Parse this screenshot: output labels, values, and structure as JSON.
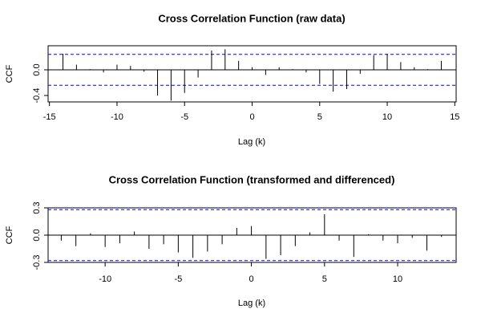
{
  "chart_data": [
    {
      "type": "bar",
      "title": "Cross Correlation Function (raw data)",
      "xlabel": "Lag (k)",
      "ylabel": "CCF",
      "x": [
        -14,
        -13,
        -12,
        -11,
        -10,
        -9,
        -8,
        -7,
        -6,
        -5,
        -4,
        -3,
        -2,
        -1,
        0,
        1,
        2,
        3,
        4,
        5,
        6,
        7,
        8,
        9,
        10,
        11,
        12,
        13,
        14
      ],
      "values": [
        0.25,
        0.08,
        0.01,
        -0.04,
        0.08,
        0.06,
        -0.03,
        -0.4,
        -0.48,
        -0.36,
        -0.12,
        0.3,
        0.32,
        0.14,
        0.04,
        -0.08,
        0.04,
        0.01,
        -0.04,
        -0.22,
        -0.34,
        -0.3,
        -0.06,
        0.23,
        0.25,
        0.12,
        0.04,
        0.01,
        0.14
      ],
      "color": "#000000",
      "xlim": [
        -15.1,
        15.1
      ],
      "xticks": [
        -15,
        -10,
        -5,
        0,
        5,
        10,
        15
      ],
      "ylim": [
        -0.5,
        0.375
      ],
      "yticks": [
        {
          "value": -0.4,
          "label": "-0.4"
        },
        {
          "value": 0,
          "label": "0.0"
        }
      ],
      "confidence_bounds": [
        0.24,
        -0.24
      ],
      "bound_color": "#0000ff"
    },
    {
      "type": "bar",
      "title": "Cross Correlation Function (transformed and differenced)",
      "xlabel": "Lag (k)",
      "ylabel": "CCF",
      "x": [
        -13,
        -12,
        -11,
        -10,
        -9,
        -8,
        -7,
        -6,
        -5,
        -4,
        -3,
        -2,
        -1,
        0,
        1,
        2,
        3,
        4,
        5,
        6,
        7,
        8,
        9,
        10,
        11,
        12,
        13
      ],
      "values": [
        -0.06,
        -0.12,
        0.02,
        -0.13,
        -0.09,
        0.04,
        -0.15,
        -0.1,
        -0.19,
        -0.25,
        -0.18,
        -0.1,
        0.08,
        0.1,
        -0.26,
        -0.22,
        -0.12,
        0.03,
        0.23,
        -0.06,
        -0.24,
        0.01,
        -0.06,
        -0.09,
        -0.03,
        -0.17,
        -0.02
      ],
      "color": "#000000",
      "xlim": [
        -13.9,
        14
      ],
      "xticks": [
        -10,
        -5,
        0,
        5,
        10
      ],
      "ylim": [
        -0.3,
        0.3
      ],
      "yticks": [
        -0.3,
        {
          "value": 0,
          "label": "0.0"
        },
        0.3
      ],
      "confidence_bounds": [
        0.28,
        -0.28
      ],
      "bound_color": "#0000ff"
    }
  ]
}
